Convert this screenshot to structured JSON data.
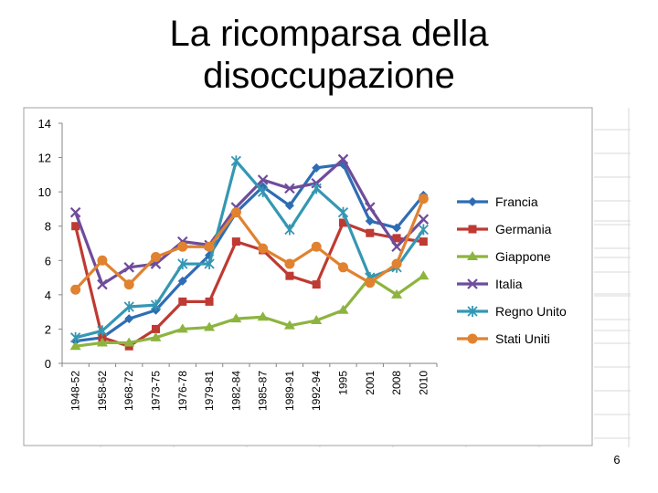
{
  "slide": {
    "title": "La ricomparsa della disoccupazione",
    "page_number": "6"
  },
  "chart_data": {
    "type": "line",
    "title": "",
    "xlabel": "",
    "ylabel": "",
    "ylim": [
      0,
      14
    ],
    "yticks": [
      0,
      2,
      4,
      6,
      8,
      10,
      12,
      14
    ],
    "legend_position": "right",
    "grid": false,
    "categories": [
      "1948-52",
      "1958-62",
      "1968-72",
      "1973-75",
      "1976-78",
      "1979-81",
      "1982-84",
      "1985-87",
      "1989-91",
      "1992-94",
      "1995",
      "2001",
      "2008",
      "2010"
    ],
    "series": [
      {
        "name": "Francia",
        "color": "#2E6DB4",
        "marker": "diamond",
        "values": [
          1.3,
          1.5,
          2.6,
          3.1,
          4.8,
          6.3,
          8.8,
          10.3,
          9.2,
          11.4,
          11.6,
          8.3,
          7.9,
          9.8
        ]
      },
      {
        "name": "Germania",
        "color": "#BE3A32",
        "marker": "square",
        "values": [
          8.0,
          1.5,
          1.0,
          2.0,
          3.6,
          3.6,
          7.1,
          6.6,
          5.1,
          4.6,
          8.2,
          7.6,
          7.3,
          7.1
        ]
      },
      {
        "name": "Giappone",
        "color": "#8DB43F",
        "marker": "triangle",
        "values": [
          1.0,
          1.2,
          1.2,
          1.5,
          2.0,
          2.1,
          2.6,
          2.7,
          2.2,
          2.5,
          3.1,
          5.0,
          4.0,
          5.1
        ]
      },
      {
        "name": "Italia",
        "color": "#6F4C9B",
        "marker": "x",
        "values": [
          8.8,
          4.6,
          5.6,
          5.8,
          7.1,
          6.9,
          9.1,
          10.7,
          10.2,
          10.5,
          11.9,
          9.1,
          6.8,
          8.4
        ]
      },
      {
        "name": "Regno Unito",
        "color": "#3497B3",
        "marker": "star",
        "values": [
          1.5,
          1.9,
          3.3,
          3.4,
          5.8,
          5.8,
          11.8,
          10.0,
          7.8,
          10.2,
          8.8,
          5.0,
          5.6,
          7.8
        ]
      },
      {
        "name": "Stati Uniti",
        "color": "#E0822F",
        "marker": "circle",
        "values": [
          4.3,
          6.0,
          4.6,
          6.2,
          6.8,
          6.8,
          8.8,
          6.7,
          5.8,
          6.8,
          5.6,
          4.7,
          5.8,
          9.6
        ]
      }
    ]
  }
}
